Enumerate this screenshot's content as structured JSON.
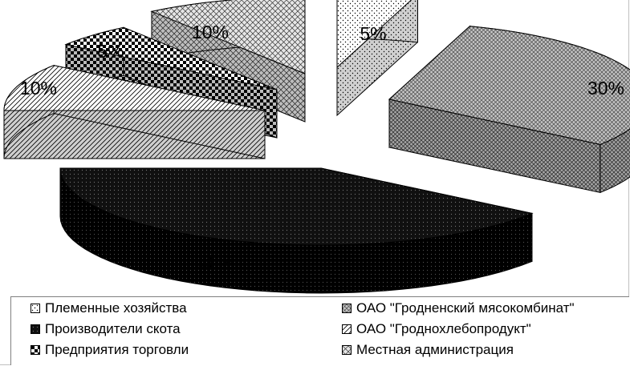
{
  "chart_data": {
    "type": "pie",
    "style": "3d-exploded",
    "title": "",
    "slices": [
      {
        "name": "Племенные хозяйства",
        "value": 5,
        "label": "5%",
        "pattern": "dots-light"
      },
      {
        "name": "ОАО \"Гродненский мясокомбинат\"",
        "value": 30,
        "label": "30%",
        "pattern": "crosshatch-gray"
      },
      {
        "name": "Производители скота",
        "value": 40,
        "label": "40%",
        "pattern": "dots-dark"
      },
      {
        "name": "ОАО \"Гроднохлебопродукт\"",
        "value": 10,
        "label": "10%",
        "pattern": "diagonal-lines"
      },
      {
        "name": "Предприятия торговли",
        "value": 5,
        "label": "5%",
        "pattern": "checker"
      },
      {
        "name": "Местная администрация",
        "value": 10,
        "label": "10%",
        "pattern": "diag-cross"
      }
    ],
    "legend_position": "bottom"
  }
}
